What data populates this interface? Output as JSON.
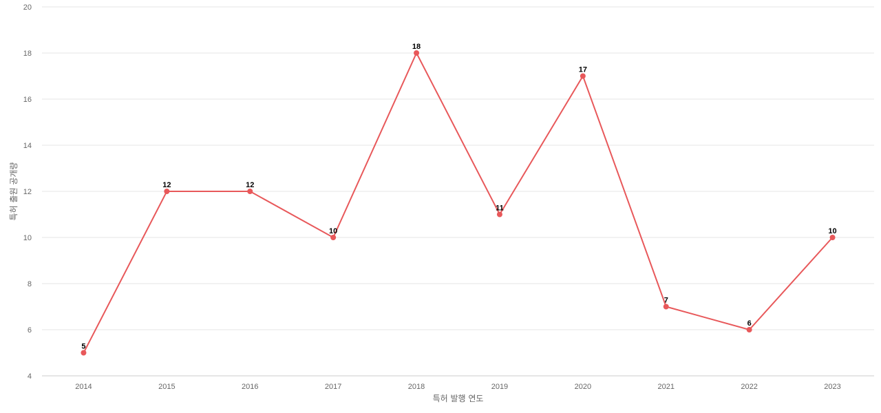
{
  "chart_data": {
    "type": "line",
    "title": "",
    "xlabel": "특허 발행 연도",
    "ylabel": "특허 출원 공개량",
    "ylim": [
      4,
      20
    ],
    "yticks": [
      4,
      6,
      8,
      10,
      12,
      14,
      16,
      18,
      20
    ],
    "grid": true,
    "legend": "none",
    "categories": [
      "2014",
      "2015",
      "2016",
      "2017",
      "2018",
      "2019",
      "2020",
      "2021",
      "2022",
      "2023"
    ],
    "series": [
      {
        "color": "#e8585a",
        "values": [
          5,
          12,
          12,
          10,
          18,
          11,
          17,
          7,
          6,
          10
        ]
      }
    ]
  }
}
